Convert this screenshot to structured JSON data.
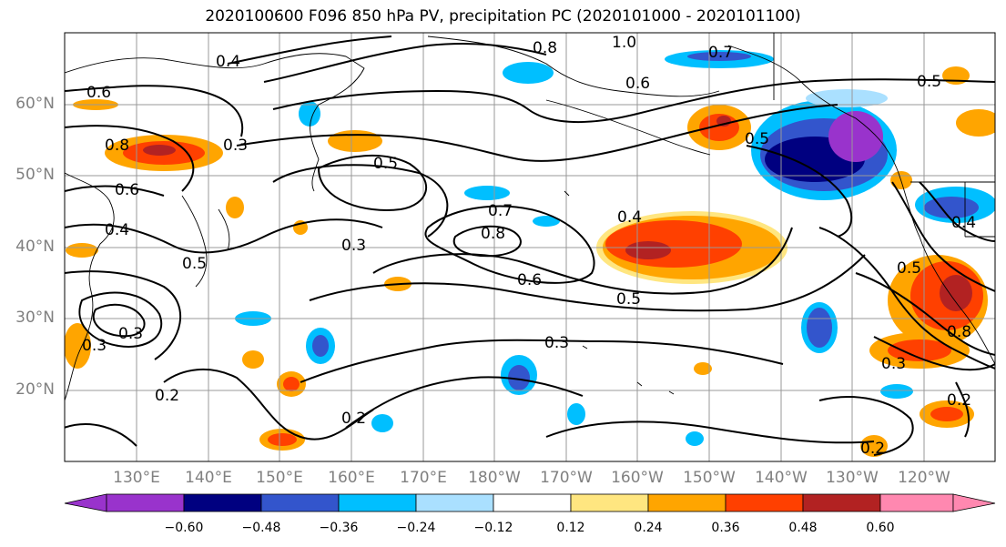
{
  "title": "2020100600 F096 850 hPa PV, precipitation PC (2020101000 - 2020101100)",
  "lat_labels": [
    "60°N",
    "50°N",
    "40°N",
    "30°N",
    "20°N"
  ],
  "lon_labels": [
    "130°E",
    "140°E",
    "150°E",
    "160°E",
    "170°E",
    "180°W",
    "170°W",
    "160°W",
    "150°W",
    "140°W",
    "130°W",
    "120°W"
  ],
  "colorbar": {
    "ticks": [
      "−0.60",
      "−0.48",
      "−0.36",
      "−0.24",
      "−0.12",
      "0.12",
      "0.24",
      "0.36",
      "0.48",
      "0.60"
    ],
    "colors": [
      "#9933cc",
      "#000080",
      "#3355cc",
      "#00bfff",
      "#aae0ff",
      "#ffffff",
      "#ffe680",
      "#ffa500",
      "#ff4000",
      "#b22222",
      "#ff88b0"
    ]
  },
  "contour_labels": [
    "0.4",
    "0.8",
    "1.0",
    "0.7",
    "0.6",
    "0.5",
    "0.3",
    "0.5",
    "0.8",
    "0.6",
    "0.3",
    "0.5",
    "0.4",
    "0.7",
    "0.8",
    "0.6",
    "0.5",
    "0.3",
    "0.2",
    "0.2",
    "0.5",
    "0.3",
    "0.4",
    "0.2",
    "0.8",
    "0.2",
    "0.5",
    "0.3",
    "0.6",
    "0.4",
    "0.3"
  ]
}
